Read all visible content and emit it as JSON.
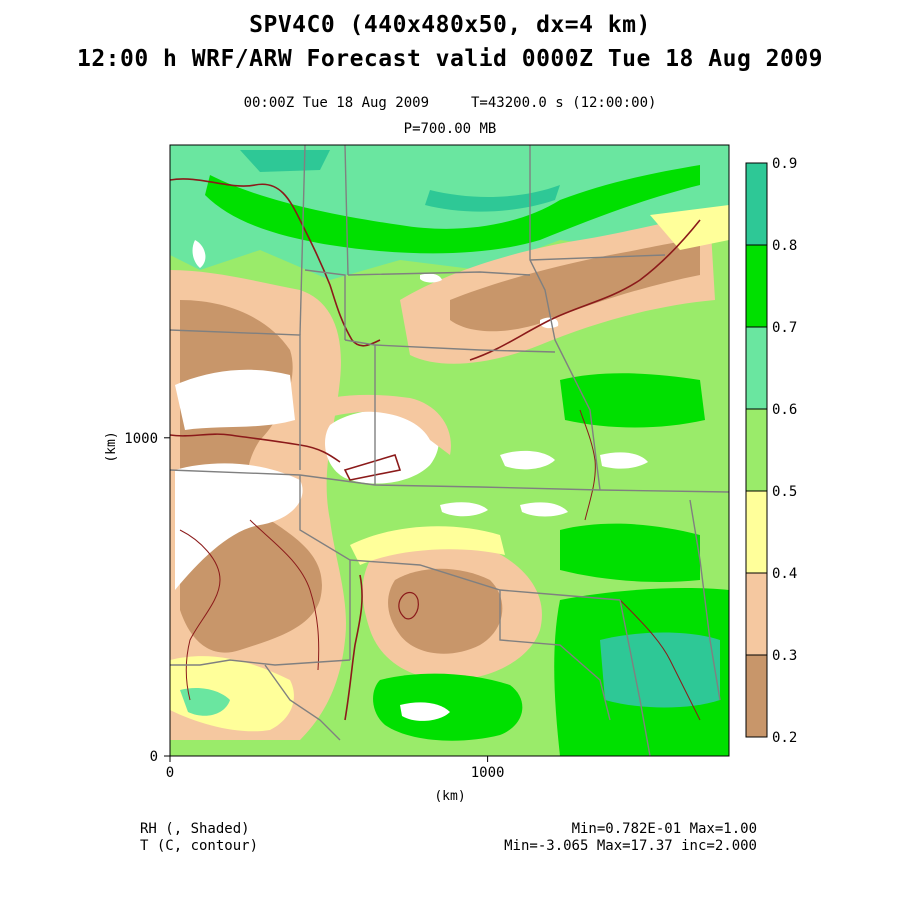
{
  "title": {
    "line1": "SPV4C0 (440x480x50, dx=4 km)",
    "line2": "12:00 h WRF/ARW Forecast valid 0000Z Tue 18 Aug 2009"
  },
  "subtitle": {
    "valid_time": "00:00Z Tue 18 Aug 2009",
    "forecast_time": "T=43200.0 s (12:00:00)",
    "level": "P=700.00 MB"
  },
  "axes": {
    "x_label": "(km)",
    "y_label": "(km)",
    "x_ticks": [
      {
        "value": 0,
        "label": "0"
      },
      {
        "value": 1000,
        "label": "1000"
      }
    ],
    "y_ticks": [
      {
        "value": 0,
        "label": "0"
      },
      {
        "value": 1000,
        "label": "1000"
      }
    ],
    "x_range_km": [
      0,
      1760
    ],
    "y_range_km": [
      0,
      1920
    ]
  },
  "colorbar": {
    "levels": [
      0.2,
      0.3,
      0.4,
      0.5,
      0.6,
      0.7,
      0.8,
      0.9
    ],
    "labels": [
      "0.2",
      "0.3",
      "0.4",
      "0.5",
      "0.6",
      "0.7",
      "0.8",
      "0.9"
    ],
    "colors": [
      "#c8966a",
      "#f5c8a0",
      "#ffff9a",
      "#9aeb6a",
      "#6ae6a0",
      "#00e000",
      "#2ec896"
    ]
  },
  "legend": {
    "rh_field": "RH (, Shaded)",
    "t_field": "T (C, contour)",
    "rh_stats": "Min=0.782E-01 Max=1.00",
    "t_stats": "Min=-3.065 Max=17.37 inc=2.000"
  },
  "colors": {
    "temperature_contour": "#8b1a1a",
    "state_boundary": "#808080",
    "low_rh_white": "#ffffff"
  }
}
